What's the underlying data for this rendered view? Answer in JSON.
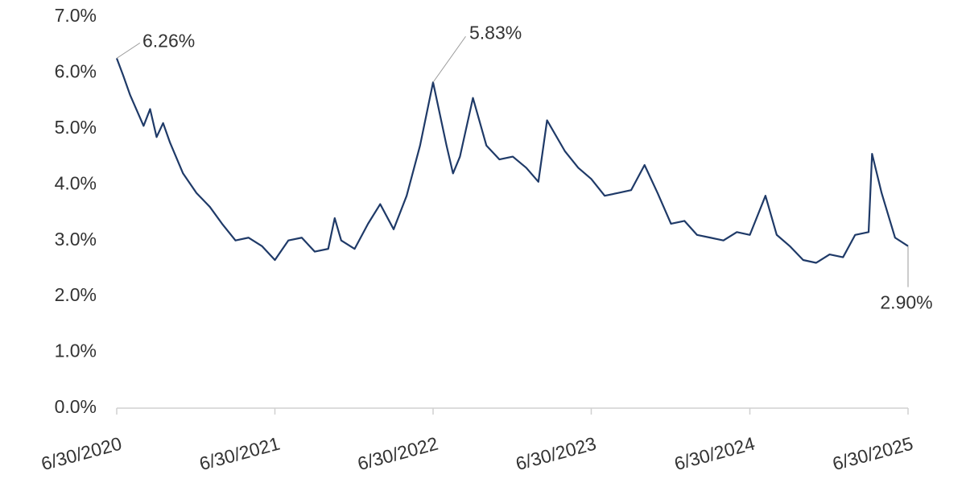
{
  "chart_data": {
    "type": "line",
    "x": [
      "2020-06-30",
      "2020-07-15",
      "2020-07-31",
      "2020-08-31",
      "2020-09-15",
      "2020-09-30",
      "2020-10-15",
      "2020-10-31",
      "2020-11-30",
      "2020-12-31",
      "2021-01-31",
      "2021-02-28",
      "2021-03-31",
      "2021-04-30",
      "2021-05-31",
      "2021-06-30",
      "2021-07-31",
      "2021-08-31",
      "2021-09-30",
      "2021-10-31",
      "2021-11-15",
      "2021-11-30",
      "2021-12-31",
      "2022-01-31",
      "2022-02-28",
      "2022-03-31",
      "2022-04-30",
      "2022-05-31",
      "2022-06-30",
      "2022-07-31",
      "2022-08-15",
      "2022-08-31",
      "2022-09-30",
      "2022-10-31",
      "2022-11-30",
      "2022-12-31",
      "2023-01-31",
      "2023-02-28",
      "2023-03-20",
      "2023-04-30",
      "2023-05-31",
      "2023-06-30",
      "2023-07-31",
      "2023-08-31",
      "2023-09-30",
      "2023-10-31",
      "2023-11-30",
      "2023-12-31",
      "2024-01-31",
      "2024-02-29",
      "2024-03-31",
      "2024-04-30",
      "2024-05-31",
      "2024-06-30",
      "2024-08-05",
      "2024-08-31",
      "2024-09-30",
      "2024-10-31",
      "2024-11-30",
      "2024-12-31",
      "2025-01-31",
      "2025-02-28",
      "2025-03-31",
      "2025-04-08",
      "2025-04-30",
      "2025-05-31",
      "2025-06-30"
    ],
    "series": [
      {
        "color": "#1f3a68",
        "values": [
          6.26,
          5.95,
          5.6,
          5.05,
          5.35,
          4.85,
          5.1,
          4.75,
          4.2,
          3.85,
          3.6,
          3.3,
          3.0,
          3.05,
          2.9,
          2.65,
          3.0,
          3.05,
          2.8,
          2.85,
          3.4,
          3.0,
          2.85,
          3.3,
          3.65,
          3.2,
          3.8,
          4.7,
          5.83,
          4.7,
          4.2,
          4.5,
          5.55,
          4.7,
          4.45,
          4.5,
          4.3,
          4.05,
          5.15,
          4.6,
          4.3,
          4.1,
          3.8,
          3.85,
          3.9,
          4.35,
          3.85,
          3.3,
          3.35,
          3.1,
          3.05,
          3.0,
          3.15,
          3.1,
          3.8,
          3.1,
          2.9,
          2.65,
          2.6,
          2.75,
          2.7,
          3.1,
          3.15,
          4.55,
          3.85,
          3.05,
          2.9
        ],
        "value_labels": [
          "6.26%",
          null,
          null,
          null,
          null,
          null,
          null,
          null,
          null,
          null,
          null,
          null,
          null,
          null,
          null,
          null,
          null,
          null,
          null,
          null,
          null,
          null,
          null,
          null,
          null,
          null,
          null,
          null,
          "5.83%",
          null,
          null,
          null,
          null,
          null,
          null,
          null,
          null,
          null,
          null,
          null,
          null,
          null,
          null,
          null,
          null,
          null,
          null,
          null,
          null,
          null,
          null,
          null,
          null,
          null,
          null,
          null,
          null,
          null,
          null,
          null,
          null,
          null,
          null,
          null,
          null,
          null,
          "2.90%"
        ]
      }
    ],
    "xlim": [
      "2020-06-30",
      "2025-06-30"
    ],
    "xticks": [
      {
        "value": "2020-06-30",
        "label": "6/30/2020"
      },
      {
        "value": "2021-06-30",
        "label": "6/30/2021"
      },
      {
        "value": "2022-06-30",
        "label": "6/30/2022"
      },
      {
        "value": "2023-06-30",
        "label": "6/30/2023"
      },
      {
        "value": "2024-06-30",
        "label": "6/30/2024"
      },
      {
        "value": "2025-06-30",
        "label": "6/30/2025"
      }
    ],
    "ylim": [
      0,
      7
    ],
    "yticks": [
      {
        "value": 0,
        "label": "0.0%"
      },
      {
        "value": 1,
        "label": "1.0%"
      },
      {
        "value": 2,
        "label": "2.0%"
      },
      {
        "value": 3,
        "label": "3.0%"
      },
      {
        "value": 4,
        "label": "4.0%"
      },
      {
        "value": 5,
        "label": "5.0%"
      },
      {
        "value": 6,
        "label": "6.0%"
      },
      {
        "value": 7,
        "label": "7.0%"
      }
    ],
    "grid": false
  }
}
